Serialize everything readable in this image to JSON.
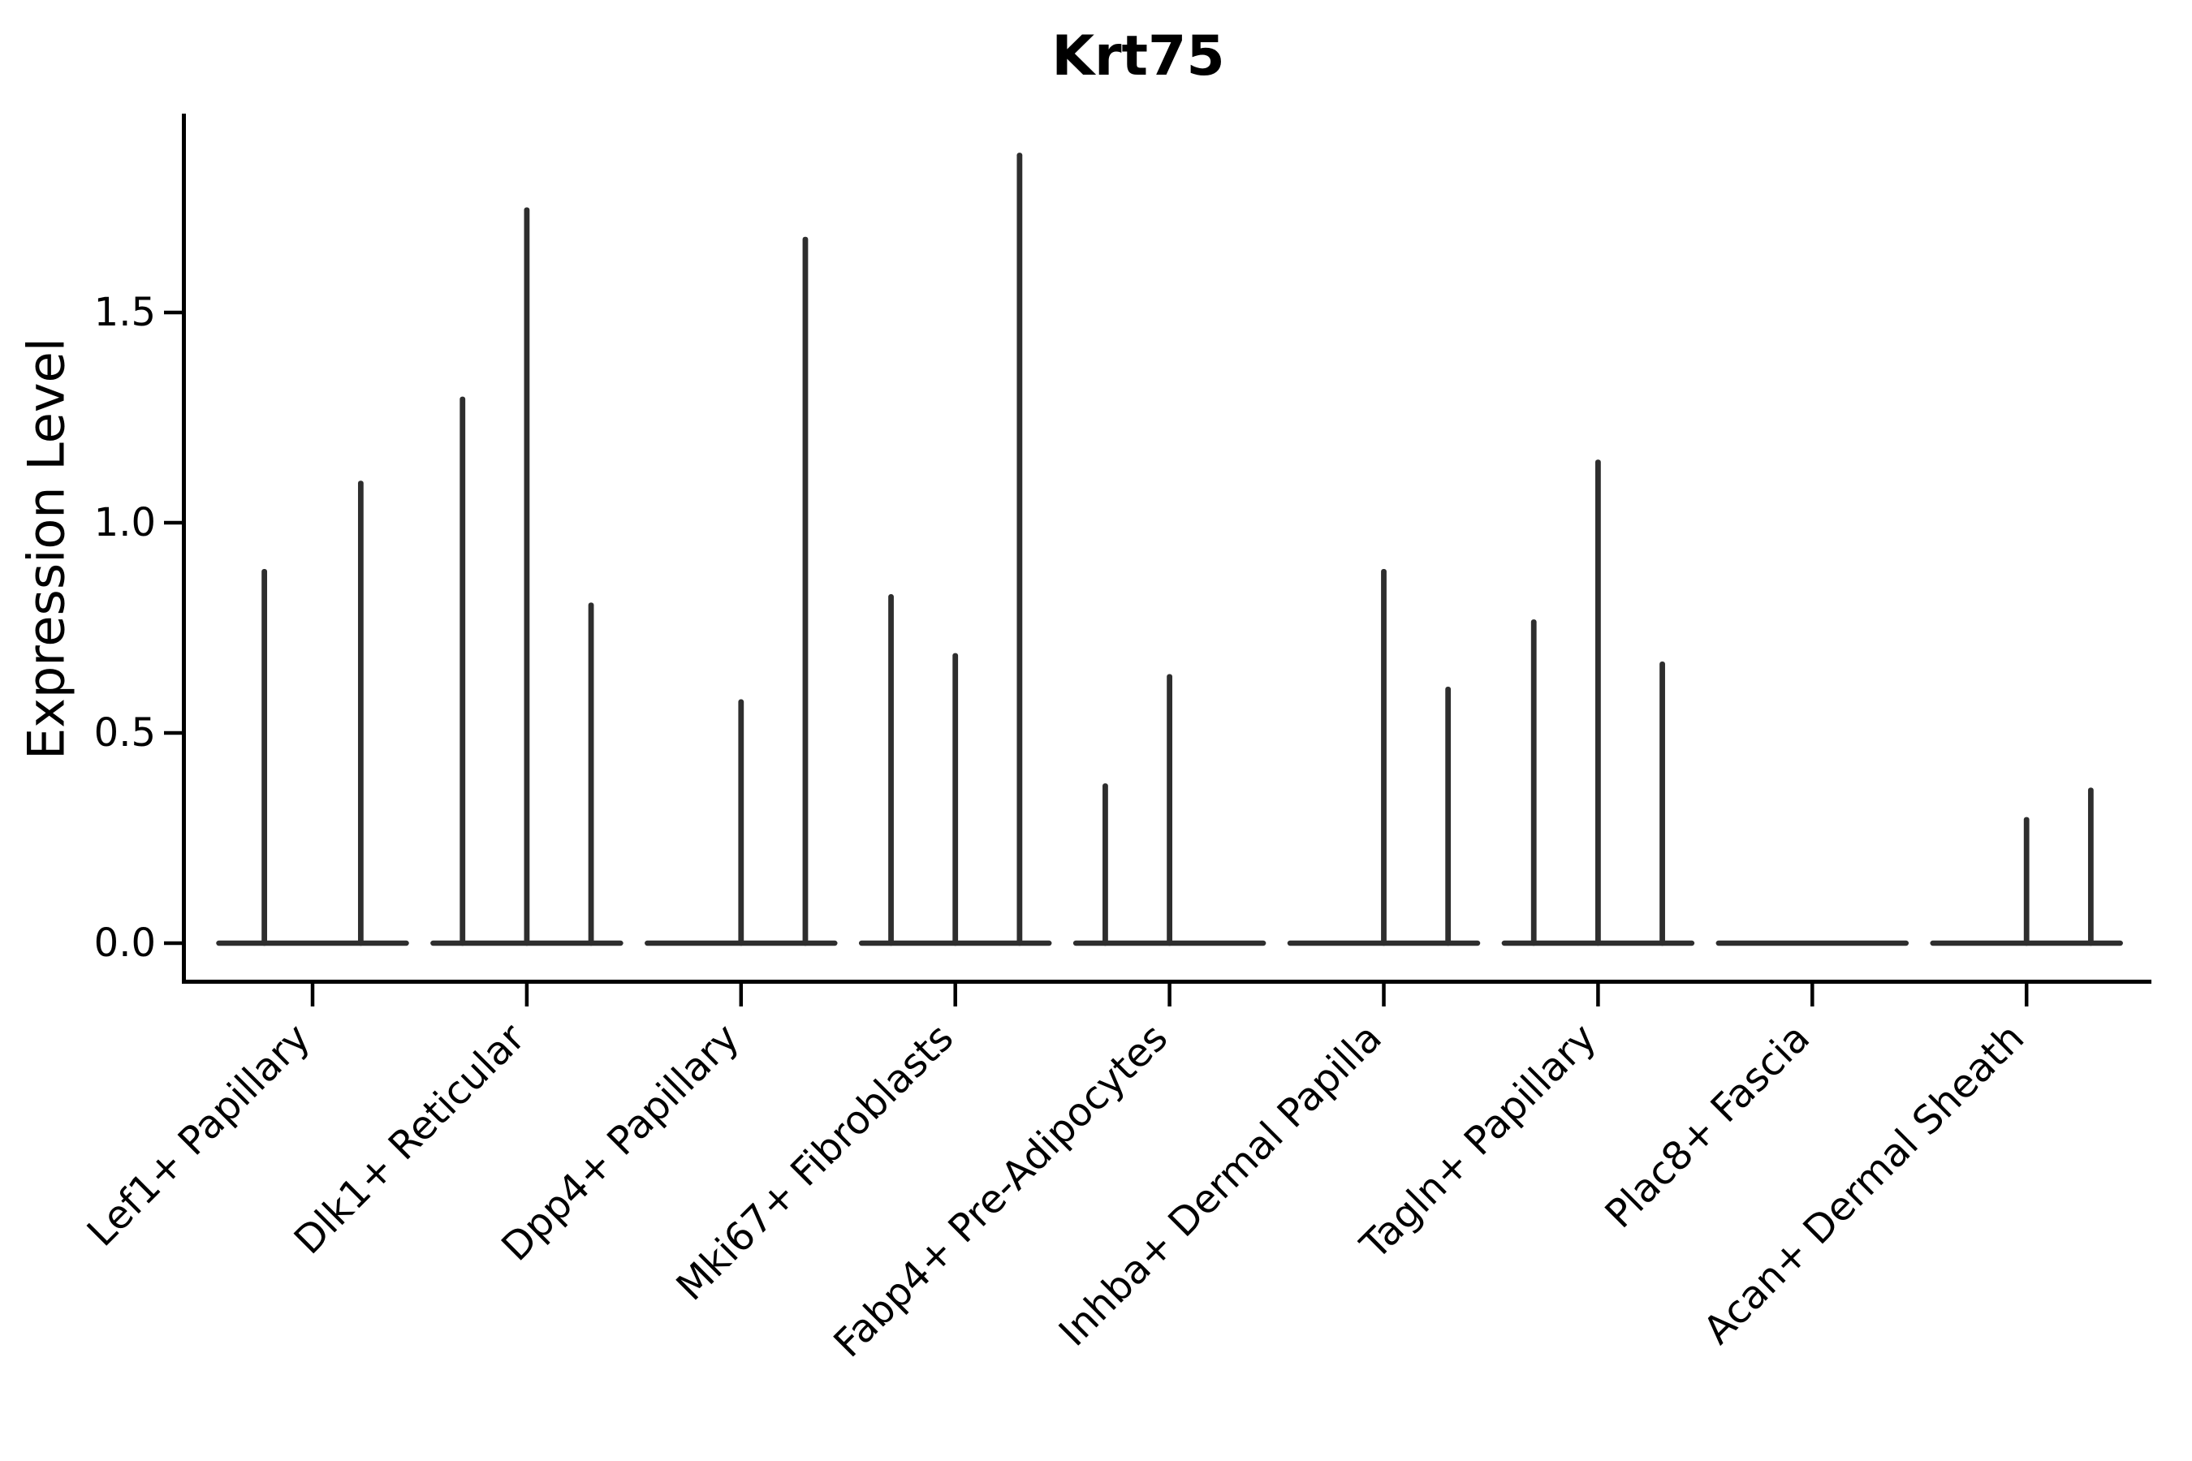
{
  "figure": {
    "background": "#ffffff"
  },
  "chart_data": {
    "type": "violin",
    "title": "Krt75",
    "ylabel": "Expression Level",
    "xlabel": "",
    "ytick_labels": [
      "0.0",
      "0.5",
      "1.0",
      "1.5"
    ],
    "ytick_values": [
      0,
      0.5,
      1.0,
      1.5
    ],
    "ylim": [
      0,
      1.97
    ],
    "grid": false,
    "legend_position": "none",
    "line_color": "#2e2e2e",
    "axis_color": "#000000",
    "text_color": "#000000",
    "categories": [
      {
        "label": "Lef1+ Papillary",
        "violin_maxima": [
          0.89,
          1.1
        ]
      },
      {
        "label": "Dlk1+ Reticular",
        "violin_maxima": [
          1.3,
          1.75,
          0.81
        ]
      },
      {
        "label": "Dpp4+ Papillary",
        "violin_maxima": [
          0,
          0.58,
          1.68
        ]
      },
      {
        "label": "Mki67+ Fibroblasts",
        "violin_maxima": [
          0.83,
          0.69,
          1.88
        ]
      },
      {
        "label": "Fabp4+ Pre-Adipocytes",
        "violin_maxima": [
          0.38,
          0.64,
          0
        ]
      },
      {
        "label": "Inhba+ Dermal Papilla",
        "violin_maxima": [
          0,
          0.89,
          0.61
        ]
      },
      {
        "label": "Tagln+ Papillary",
        "violin_maxima": [
          0.77,
          1.15,
          0.67
        ]
      },
      {
        "label": "Plac8+ Fascia",
        "violin_maxima": [
          0,
          0,
          0
        ]
      },
      {
        "label": "Acan+ Dermal Sheath",
        "violin_maxima": [
          0,
          0.3,
          0.37
        ]
      }
    ]
  }
}
